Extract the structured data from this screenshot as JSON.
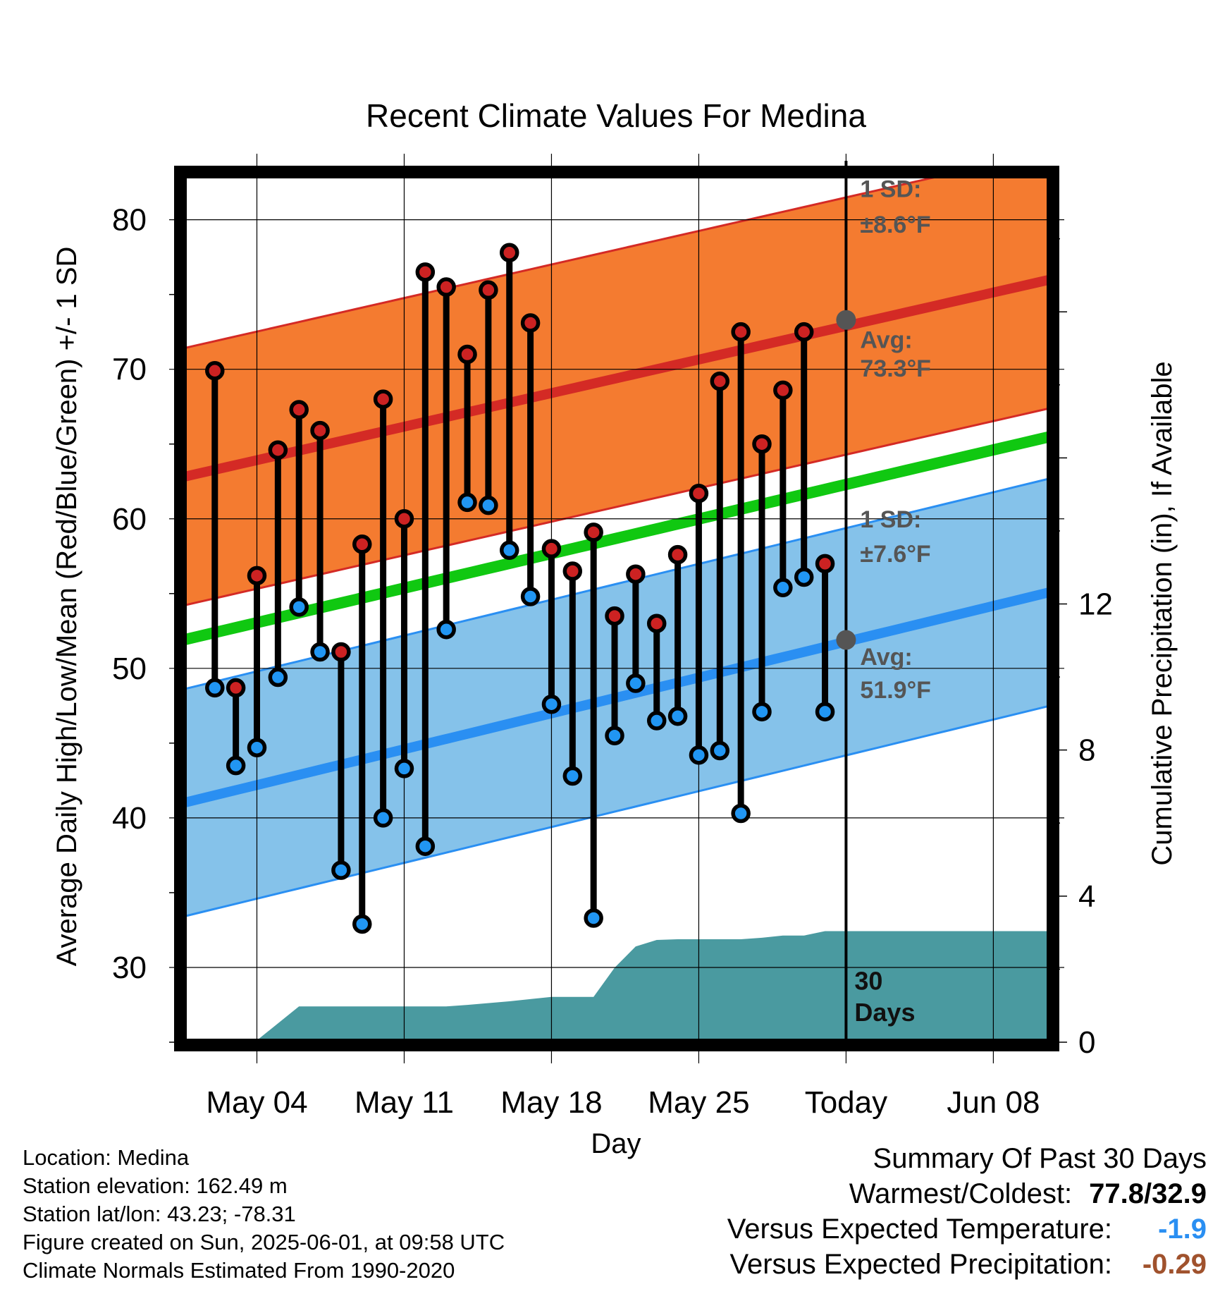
{
  "chart_data": {
    "type": "line",
    "title": "Recent Climate Values For Medina",
    "xlabel": "Day",
    "ylabel": "Average Daily High/Low/Mean (Red/Blue/Green) +/- 1 SD",
    "y2label": "Cumulative Precipitation (in), If Available",
    "x_ticks": [
      "May 04",
      "May 11",
      "May 18",
      "May 25",
      "Today",
      "Jun 08"
    ],
    "ylim": [
      25,
      83
    ],
    "y_ticks": [
      30,
      40,
      50,
      60,
      70,
      80
    ],
    "y2lim": [
      0,
      23.75
    ],
    "y2_ticks": [
      0,
      4,
      8,
      12
    ],
    "xlim_days": [
      -31.5,
      9.7
    ],
    "normals": {
      "high_avg": {
        "start": 62.8,
        "end": 76.0
      },
      "high_sd": 8.6,
      "low_avg": {
        "start": 41.0,
        "end": 55.1
      },
      "low_sd": 7.6,
      "mean_avg": {
        "start": 51.9,
        "end": 65.5
      }
    },
    "annotations": {
      "high_sd_label": "1 SD:",
      "high_sd_value": "±8.6°F",
      "high_avg_label": "Avg:",
      "high_avg_value": "73.3°F",
      "low_sd_label": "1 SD:",
      "low_sd_value": "±7.6°F",
      "low_avg_label": "Avg:",
      "low_avg_value": "51.9°F",
      "days_top": "30",
      "days_bottom": "Days",
      "today_high_avg": 73.3,
      "today_low_avg": 51.9
    },
    "daily": {
      "day_offset": [
        -30,
        -29,
        -28,
        -27,
        -26,
        -25,
        -24,
        -23,
        -22,
        -21,
        -20,
        -19,
        -18,
        -17,
        -16,
        -15,
        -14,
        -13,
        -12,
        -11,
        -10,
        -9,
        -8,
        -7,
        -6,
        -5,
        -4,
        -3,
        -2,
        -1
      ],
      "high": [
        69.9,
        48.7,
        56.2,
        64.6,
        67.3,
        65.9,
        51.1,
        58.3,
        68.0,
        60.0,
        76.5,
        75.5,
        71.0,
        75.3,
        77.8,
        73.1,
        58.0,
        56.5,
        59.1,
        53.5,
        56.3,
        53.0,
        57.6,
        61.7,
        69.2,
        72.5,
        65.0,
        68.6,
        72.5,
        57.0
      ],
      "low": [
        48.7,
        43.5,
        44.7,
        49.4,
        54.1,
        51.1,
        36.5,
        32.9,
        40.0,
        43.3,
        38.1,
        52.6,
        61.1,
        60.9,
        57.9,
        54.8,
        47.6,
        42.8,
        33.3,
        45.5,
        49.0,
        46.5,
        46.8,
        44.2,
        44.5,
        40.3,
        47.1,
        55.4,
        56.1,
        47.1
      ]
    },
    "precip_cumulative": {
      "x": [
        -31.5,
        -30,
        -29,
        -28,
        -26,
        -24,
        -21,
        -19,
        -18,
        -16,
        -14,
        -12,
        -11,
        -10,
        -9,
        -8,
        -7,
        -6,
        -5,
        -4,
        -3,
        -2,
        -1,
        0,
        9.7
      ],
      "y": [
        0,
        0,
        0.05,
        0.05,
        0.98,
        0.98,
        0.98,
        0.98,
        1.02,
        1.12,
        1.24,
        1.24,
        2.04,
        2.62,
        2.8,
        2.82,
        2.82,
        2.82,
        2.82,
        2.86,
        2.92,
        2.92,
        3.04,
        3.04,
        3.04
      ]
    },
    "colors": {
      "high_band": "#f47b30",
      "high_line": "#d42a25",
      "low_band": "#85c2ea",
      "low_line": "#2a8ff2",
      "mean_line": "#10c811",
      "precip": "#4a9aa0",
      "high_marker": "#cc2222",
      "low_marker": "#2196f3",
      "annotation": "#555555"
    }
  },
  "info": {
    "location": "Location: Medina",
    "elevation": "Station elevation: 162.49 m",
    "latlon": "Station lat/lon: 43.23; -78.31",
    "created": "Figure created on Sun, 2025-06-01, at 09:58 UTC",
    "normals": "Climate Normals Estimated From 1990-2020"
  },
  "summary": {
    "title": "Summary Of Past 30 Days",
    "warm_cold_label": "Warmest/Coldest:",
    "warm_cold_value": "77.8/32.9",
    "temp_label": "Versus Expected Temperature:",
    "temp_value": "-1.9",
    "temp_color": "#2a8ff2",
    "precip_label": "Versus Expected Precipitation:",
    "precip_value": "-0.29",
    "precip_color": "#a0522d"
  }
}
